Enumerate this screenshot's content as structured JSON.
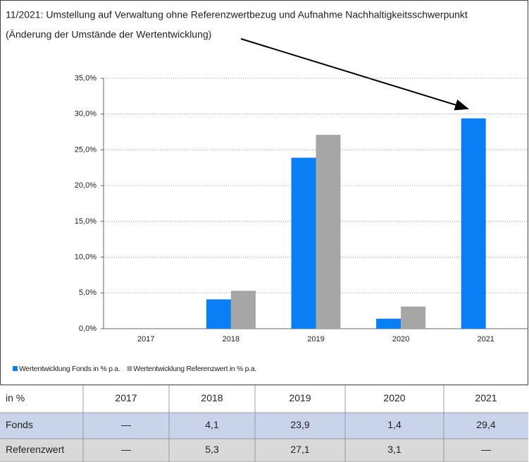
{
  "chart_data": {
    "type": "bar",
    "annotation": [
      "11/2021: Umstellung auf Verwaltung ohne Referenzwertbezug und Aufnahme Nachhaltigkeitsschwerpunkt",
      "(Änderung der Umstände der Wertentwicklung)"
    ],
    "categories": [
      "2017",
      "2018",
      "2019",
      "2020",
      "2021"
    ],
    "series": [
      {
        "name": "Wertentwicklung Fonds in % p.a.",
        "color": "#0a7ff5",
        "values": [
          null,
          4.1,
          23.9,
          1.4,
          29.4
        ]
      },
      {
        "name": "Wertentwicklung Referenzwert in % p.a.",
        "color": "#a6a6a6",
        "values": [
          null,
          5.3,
          27.1,
          3.1,
          null
        ]
      }
    ],
    "ylim": [
      0,
      35
    ],
    "yticks": [
      {
        "value": 0,
        "label": "0,0%"
      },
      {
        "value": 5,
        "label": "5,0%"
      },
      {
        "value": 10,
        "label": "10,0%"
      },
      {
        "value": 15,
        "label": "15,0%"
      },
      {
        "value": 20,
        "label": "20,0%"
      },
      {
        "value": 25,
        "label": "25,0%"
      },
      {
        "value": 30,
        "label": "30,0%"
      },
      {
        "value": 35,
        "label": "35,0%"
      }
    ],
    "grid": true
  },
  "table": {
    "header": [
      "in %",
      "2017",
      "2018",
      "2019",
      "2020",
      "2021"
    ],
    "rows": [
      [
        "Fonds",
        "—",
        "4,1",
        "23,9",
        "1,4",
        "29,4"
      ],
      [
        "Referenzwert",
        "—",
        "5,3",
        "27,1",
        "3,1",
        "—"
      ]
    ]
  }
}
